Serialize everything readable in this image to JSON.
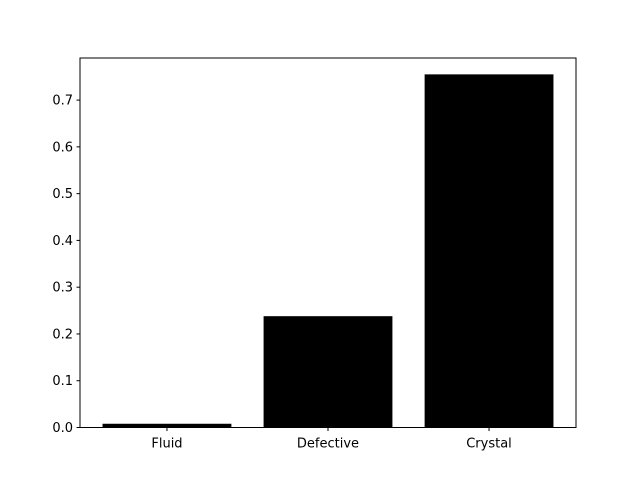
{
  "chart_data": {
    "type": "bar",
    "categories": [
      "Fluid",
      "Defective",
      "Crystal"
    ],
    "values": [
      0.008,
      0.238,
      0.755
    ],
    "title": "",
    "xlabel": "",
    "ylabel": "",
    "ylim": [
      0,
      0.79
    ],
    "yticks": [
      0.0,
      0.1,
      0.2,
      0.3,
      0.4,
      0.5,
      0.6,
      0.7
    ],
    "ytick_labels": [
      "0.0",
      "0.1",
      "0.2",
      "0.3",
      "0.4",
      "0.5",
      "0.6",
      "0.7"
    ],
    "grid": false,
    "legend": "none",
    "bar_color": "#000000"
  }
}
